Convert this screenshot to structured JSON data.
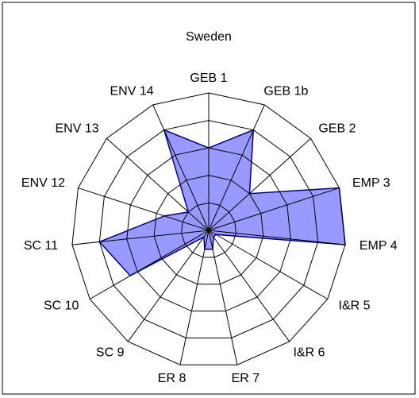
{
  "chart_data": {
    "type": "radar",
    "title": "Sweden",
    "categories": [
      "GEB 1",
      "GEB 1b",
      "GEB 2",
      "EMP 3",
      "EMP 4",
      "I&R 5",
      "I&R 6",
      "ER 7",
      "ER 8",
      "SC 9",
      "SC 10",
      "SC 11",
      "ENV 12",
      "ENV 13",
      "ENV 14"
    ],
    "values": [
      3,
      4,
      2,
      5,
      5,
      0.3,
      0.3,
      0.7,
      0.7,
      0.3,
      3.3,
      4,
      1.7,
      1,
      4
    ],
    "color": "#9999ff",
    "edge_color": "#000080",
    "rlim": [
      0,
      5
    ],
    "rticks": [
      1,
      2,
      3,
      4,
      5
    ],
    "grid": true
  }
}
